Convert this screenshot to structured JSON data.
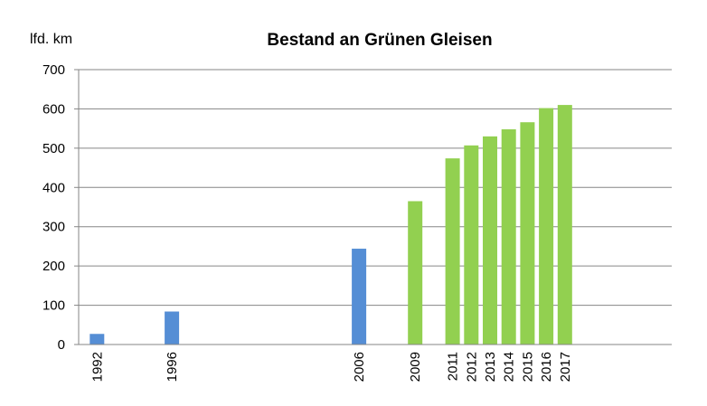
{
  "chart_data": {
    "type": "bar",
    "title": "Bestand an Grünen Gleisen",
    "ylabel": "lfd. km",
    "xlabel": "",
    "ylim": [
      0,
      700
    ],
    "yticks": [
      0,
      100,
      200,
      300,
      400,
      500,
      600,
      700
    ],
    "grid": true,
    "legend": "none",
    "x": [
      1992,
      1996,
      2006,
      2009,
      2011,
      2012,
      2013,
      2014,
      2015,
      2016,
      2017
    ],
    "categories": [
      "1992",
      "1996",
      "2006",
      "2009",
      "2011",
      "2012",
      "2013",
      "2014",
      "2015",
      "2016",
      "2017"
    ],
    "values": [
      27,
      84,
      244,
      365,
      474,
      507,
      530,
      548,
      566,
      602,
      610
    ],
    "colors": [
      "#558ed5",
      "#558ed5",
      "#558ed5",
      "#92d050",
      "#92d050",
      "#92d050",
      "#92d050",
      "#92d050",
      "#92d050",
      "#92d050",
      "#92d050"
    ]
  }
}
